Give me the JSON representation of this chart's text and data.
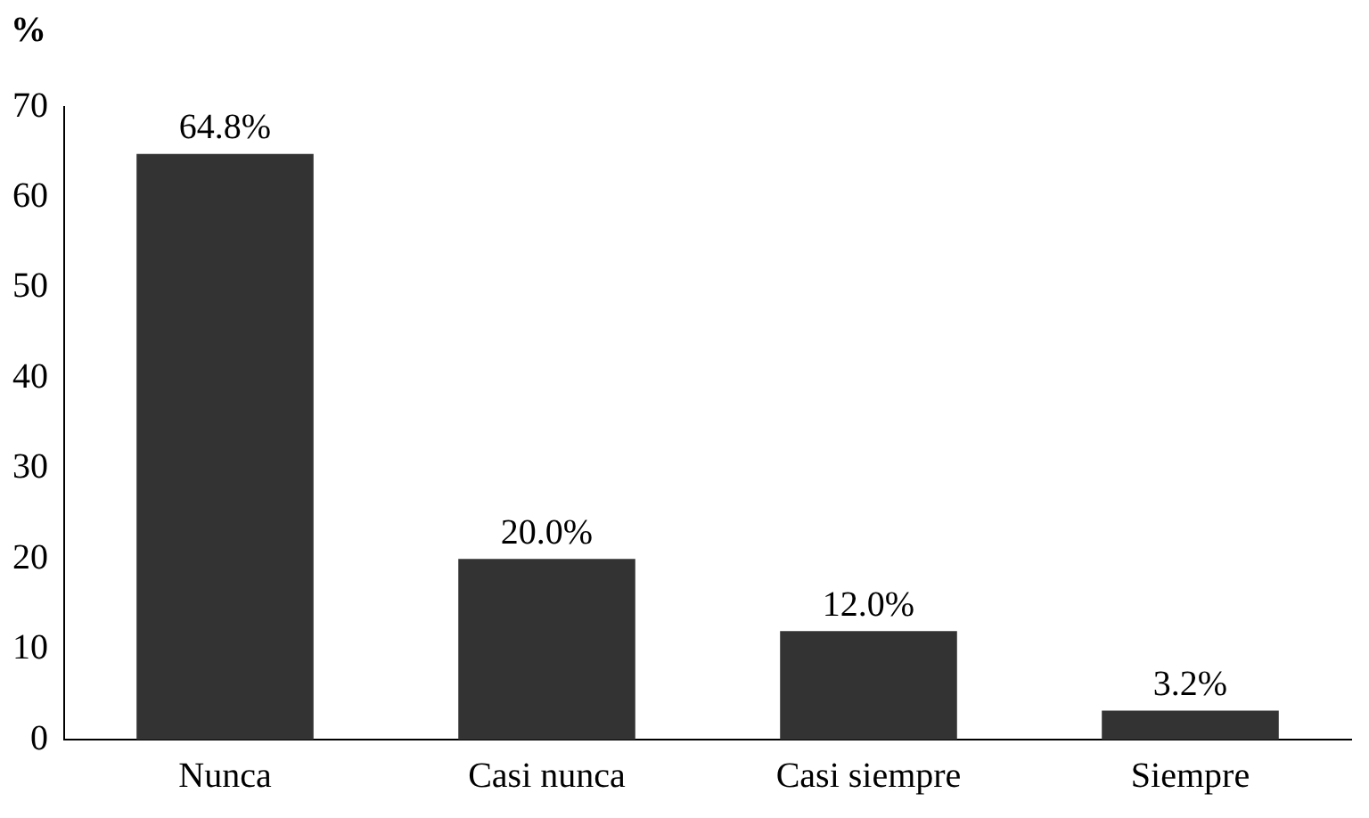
{
  "chart_data": {
    "type": "bar",
    "ylabel": "%",
    "categories": [
      "Nunca",
      "Casi nunca",
      "Casi siempre",
      "Siempre"
    ],
    "values": [
      64.8,
      20.0,
      12.0,
      3.2
    ],
    "value_labels": [
      "64.8%",
      "20.0%",
      "12.0%",
      "3.2%"
    ],
    "color": "#333333",
    "ylim": [
      0,
      70
    ],
    "yticks": [
      0,
      10,
      20,
      30,
      40,
      50,
      60,
      70
    ],
    "grid": false,
    "legend": false
  }
}
